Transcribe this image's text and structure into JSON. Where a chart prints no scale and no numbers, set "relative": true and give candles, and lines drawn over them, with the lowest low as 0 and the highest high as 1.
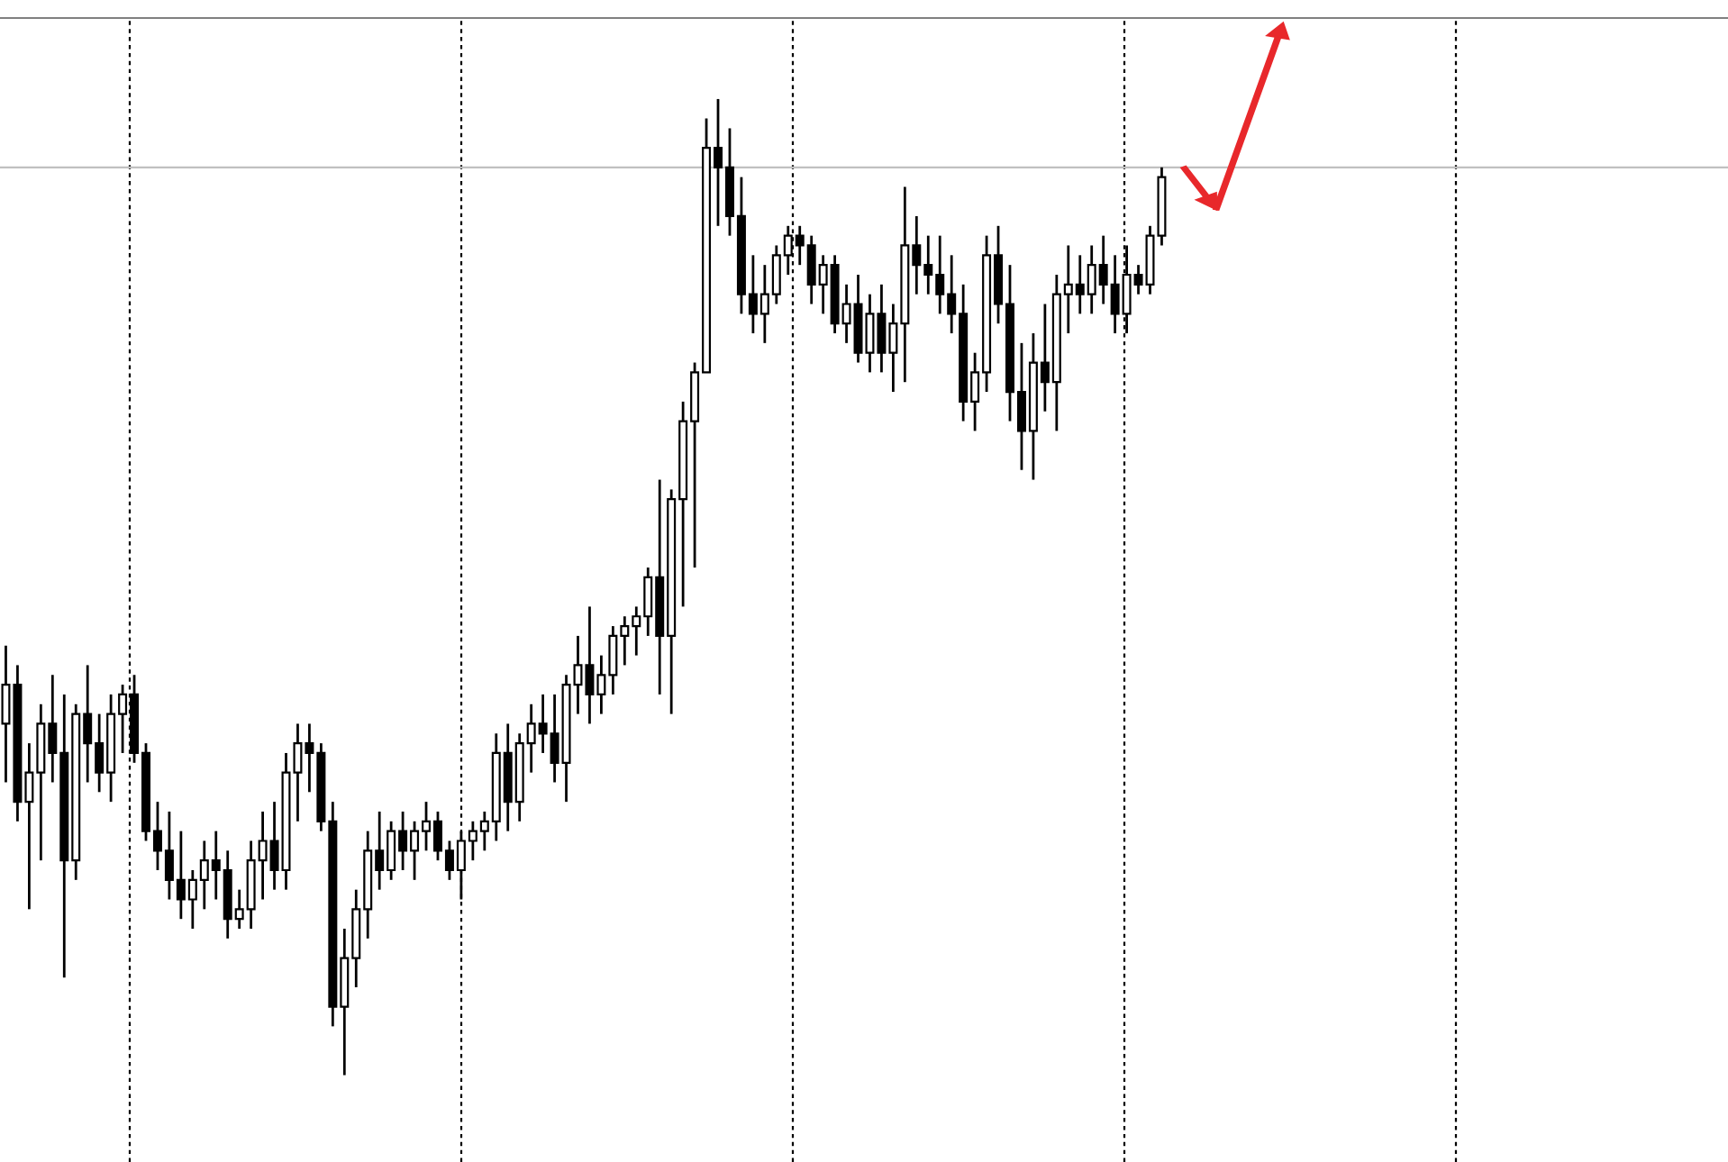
{
  "chart_data": {
    "type": "candlestick",
    "relative": true,
    "grid": "x",
    "legend": false,
    "categories": [
      null,
      null,
      null,
      null,
      null,
      null,
      null,
      null,
      null,
      null,
      null,
      null,
      null,
      null,
      null,
      null,
      null,
      null,
      null,
      null,
      null,
      null,
      null,
      null,
      null,
      null,
      null,
      null,
      null,
      null,
      null,
      null,
      null,
      null,
      null,
      null,
      null,
      null,
      null,
      null,
      null,
      null,
      null,
      null,
      null,
      null,
      null,
      null,
      null,
      null,
      null,
      null,
      null,
      null,
      null,
      null,
      null,
      null,
      null,
      null,
      null,
      null,
      null,
      null,
      null,
      null,
      null,
      null,
      null,
      null,
      null,
      null,
      null,
      null,
      null,
      null,
      null,
      null,
      null,
      null,
      null,
      null,
      null,
      null,
      null,
      null,
      null,
      null,
      null,
      null,
      null,
      null,
      null,
      null,
      null,
      null,
      null,
      null,
      null,
      null,
      null,
      null,
      null,
      null,
      null,
      null,
      null,
      null,
      null,
      null,
      null,
      null,
      null,
      null,
      null,
      null,
      null,
      null,
      null,
      null,
      null,
      null,
      null,
      null,
      null,
      null,
      null,
      null,
      null,
      null,
      null,
      null,
      null,
      null,
      null,
      null,
      null,
      null,
      null,
      null,
      null,
      null,
      null,
      null,
      null,
      null,
      null,
      null
    ],
    "ref_lines": [
      {
        "axis": "y",
        "value": 0.93,
        "color": "#c0c0c0"
      }
    ],
    "ohlc": [
      [
        0.36,
        0.44,
        0.3,
        0.4
      ],
      [
        0.4,
        0.42,
        0.26,
        0.28
      ],
      [
        0.28,
        0.34,
        0.17,
        0.31
      ],
      [
        0.31,
        0.38,
        0.22,
        0.36
      ],
      [
        0.36,
        0.41,
        0.3,
        0.33
      ],
      [
        0.33,
        0.39,
        0.1,
        0.22
      ],
      [
        0.22,
        0.38,
        0.2,
        0.37
      ],
      [
        0.37,
        0.42,
        0.3,
        0.34
      ],
      [
        0.34,
        0.37,
        0.29,
        0.31
      ],
      [
        0.31,
        0.39,
        0.28,
        0.37
      ],
      [
        0.37,
        0.4,
        0.33,
        0.39
      ],
      [
        0.39,
        0.41,
        0.32,
        0.33
      ],
      [
        0.33,
        0.34,
        0.24,
        0.25
      ],
      [
        0.25,
        0.28,
        0.21,
        0.23
      ],
      [
        0.23,
        0.27,
        0.18,
        0.2
      ],
      [
        0.2,
        0.25,
        0.16,
        0.18
      ],
      [
        0.18,
        0.21,
        0.15,
        0.2
      ],
      [
        0.2,
        0.24,
        0.17,
        0.22
      ],
      [
        0.22,
        0.25,
        0.18,
        0.21
      ],
      [
        0.21,
        0.23,
        0.14,
        0.16
      ],
      [
        0.16,
        0.19,
        0.15,
        0.17
      ],
      [
        0.17,
        0.24,
        0.15,
        0.22
      ],
      [
        0.22,
        0.27,
        0.18,
        0.24
      ],
      [
        0.24,
        0.28,
        0.19,
        0.21
      ],
      [
        0.21,
        0.33,
        0.19,
        0.31
      ],
      [
        0.31,
        0.36,
        0.26,
        0.34
      ],
      [
        0.34,
        0.36,
        0.29,
        0.33
      ],
      [
        0.33,
        0.34,
        0.25,
        0.26
      ],
      [
        0.26,
        0.28,
        0.05,
        0.07
      ],
      [
        0.07,
        0.15,
        0.0,
        0.12
      ],
      [
        0.12,
        0.19,
        0.09,
        0.17
      ],
      [
        0.17,
        0.25,
        0.14,
        0.23
      ],
      [
        0.23,
        0.27,
        0.19,
        0.21
      ],
      [
        0.21,
        0.26,
        0.2,
        0.25
      ],
      [
        0.25,
        0.27,
        0.21,
        0.23
      ],
      [
        0.23,
        0.26,
        0.2,
        0.25
      ],
      [
        0.25,
        0.28,
        0.23,
        0.26
      ],
      [
        0.26,
        0.27,
        0.22,
        0.23
      ],
      [
        0.23,
        0.24,
        0.2,
        0.21
      ],
      [
        0.21,
        0.25,
        0.18,
        0.24
      ],
      [
        0.24,
        0.26,
        0.22,
        0.25
      ],
      [
        0.25,
        0.27,
        0.23,
        0.26
      ],
      [
        0.26,
        0.35,
        0.24,
        0.33
      ],
      [
        0.33,
        0.36,
        0.25,
        0.28
      ],
      [
        0.28,
        0.35,
        0.26,
        0.34
      ],
      [
        0.34,
        0.38,
        0.31,
        0.36
      ],
      [
        0.36,
        0.39,
        0.33,
        0.35
      ],
      [
        0.35,
        0.39,
        0.3,
        0.32
      ],
      [
        0.32,
        0.41,
        0.28,
        0.4
      ],
      [
        0.4,
        0.45,
        0.37,
        0.42
      ],
      [
        0.42,
        0.48,
        0.36,
        0.39
      ],
      [
        0.39,
        0.43,
        0.37,
        0.41
      ],
      [
        0.41,
        0.46,
        0.39,
        0.45
      ],
      [
        0.45,
        0.47,
        0.42,
        0.46
      ],
      [
        0.46,
        0.48,
        0.43,
        0.47
      ],
      [
        0.47,
        0.52,
        0.45,
        0.51
      ],
      [
        0.51,
        0.61,
        0.39,
        0.45
      ],
      [
        0.45,
        0.6,
        0.37,
        0.59
      ],
      [
        0.59,
        0.69,
        0.48,
        0.67
      ],
      [
        0.67,
        0.73,
        0.52,
        0.72
      ],
      [
        0.72,
        0.98,
        0.72,
        0.95
      ],
      [
        0.95,
        1.0,
        0.87,
        0.93
      ],
      [
        0.93,
        0.97,
        0.86,
        0.88
      ],
      [
        0.88,
        0.92,
        0.78,
        0.8
      ],
      [
        0.8,
        0.84,
        0.76,
        0.78
      ],
      [
        0.78,
        0.83,
        0.75,
        0.8
      ],
      [
        0.8,
        0.85,
        0.79,
        0.84
      ],
      [
        0.84,
        0.87,
        0.82,
        0.86
      ],
      [
        0.86,
        0.87,
        0.83,
        0.85
      ],
      [
        0.85,
        0.86,
        0.79,
        0.81
      ],
      [
        0.81,
        0.84,
        0.78,
        0.83
      ],
      [
        0.83,
        0.84,
        0.76,
        0.77
      ],
      [
        0.77,
        0.81,
        0.75,
        0.79
      ],
      [
        0.79,
        0.82,
        0.73,
        0.74
      ],
      [
        0.74,
        0.8,
        0.72,
        0.78
      ],
      [
        0.78,
        0.81,
        0.72,
        0.74
      ],
      [
        0.74,
        0.79,
        0.7,
        0.77
      ],
      [
        0.77,
        0.91,
        0.71,
        0.85
      ],
      [
        0.85,
        0.88,
        0.8,
        0.83
      ],
      [
        0.83,
        0.86,
        0.8,
        0.82
      ],
      [
        0.82,
        0.86,
        0.78,
        0.8
      ],
      [
        0.8,
        0.84,
        0.76,
        0.78
      ],
      [
        0.78,
        0.81,
        0.67,
        0.69
      ],
      [
        0.69,
        0.74,
        0.66,
        0.72
      ],
      [
        0.72,
        0.86,
        0.7,
        0.84
      ],
      [
        0.84,
        0.87,
        0.77,
        0.79
      ],
      [
        0.79,
        0.83,
        0.67,
        0.7
      ],
      [
        0.7,
        0.75,
        0.62,
        0.66
      ],
      [
        0.66,
        0.76,
        0.61,
        0.73
      ],
      [
        0.73,
        0.79,
        0.68,
        0.71
      ],
      [
        0.71,
        0.82,
        0.66,
        0.8
      ],
      [
        0.8,
        0.85,
        0.76,
        0.81
      ],
      [
        0.81,
        0.84,
        0.78,
        0.8
      ],
      [
        0.8,
        0.85,
        0.78,
        0.83
      ],
      [
        0.83,
        0.86,
        0.79,
        0.81
      ],
      [
        0.81,
        0.84,
        0.76,
        0.78
      ],
      [
        0.78,
        0.85,
        0.76,
        0.82
      ],
      [
        0.82,
        0.83,
        0.8,
        0.81
      ],
      [
        0.81,
        0.87,
        0.8,
        0.86
      ],
      [
        0.86,
        0.93,
        0.85,
        0.92
      ],
      null,
      null,
      null,
      null,
      null,
      null,
      null,
      null,
      null,
      null,
      null,
      null,
      null,
      null,
      null,
      null,
      null,
      null,
      null,
      null,
      null,
      null,
      null,
      null,
      null,
      null,
      null,
      null,
      null,
      null,
      null,
      null,
      null,
      null,
      null,
      null,
      null,
      null,
      null,
      null,
      null,
      null,
      null,
      null,
      null,
      null,
      null,
      null
    ]
  }
}
